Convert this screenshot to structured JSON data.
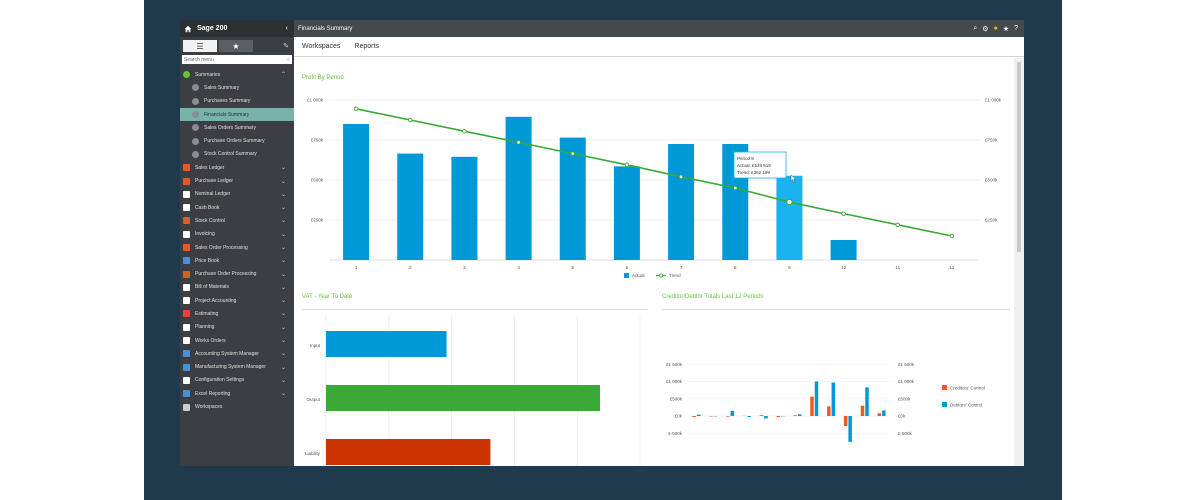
{
  "app": {
    "brand": "Sage 200",
    "page_title": "Financials Summary",
    "subnav": [
      "Workspaces",
      "Reports"
    ]
  },
  "sidebar": {
    "search_placeholder": "Search menu",
    "items": [
      {
        "label": "Summaries",
        "color": "#6bbf3e",
        "expanded": true
      },
      {
        "label": "Sales Summary",
        "sub": true
      },
      {
        "label": "Purchases Summary",
        "sub": true
      },
      {
        "label": "Financials Summary",
        "sub": true,
        "active": true
      },
      {
        "label": "Sales Orders Summary",
        "sub": true
      },
      {
        "label": "Purchase Orders Summary",
        "sub": true
      },
      {
        "label": "Stock Control Summary",
        "sub": true
      },
      {
        "label": "Sales Ledger",
        "color": "#e05a2b"
      },
      {
        "label": "Purchase Ledger",
        "color": "#e05a2b"
      },
      {
        "label": "Nominal Ledger",
        "color": "#ffffff"
      },
      {
        "label": "Cash Book",
        "color": "#ffffff"
      },
      {
        "label": "Stock Control",
        "color": "#e05a2b"
      },
      {
        "label": "Invoicing",
        "color": "#ffffff"
      },
      {
        "label": "Sales Order Processing",
        "color": "#e05a2b"
      },
      {
        "label": "Price Book",
        "color": "#4a90d9"
      },
      {
        "label": "Purchase Order Processing",
        "color": "#e05a2b"
      },
      {
        "label": "Bill of Materials",
        "color": "#ffffff"
      },
      {
        "label": "Project Accounting",
        "color": "#ffffff"
      },
      {
        "label": "Estimating",
        "color": "#e0443a"
      },
      {
        "label": "Planning",
        "color": "#ffffff"
      },
      {
        "label": "Works Orders",
        "color": "#ffffff"
      },
      {
        "label": "Accounting System Manager",
        "color": "#4a90d9"
      },
      {
        "label": "Manufacturing System Manager",
        "color": "#4a90d9"
      },
      {
        "label": "Configuration Settings",
        "color": "#ffffff"
      },
      {
        "label": "Excel Reporting",
        "color": "#4a90d9"
      },
      {
        "label": "Workspaces",
        "color": "#cccccc",
        "nochev": true
      }
    ]
  },
  "profit_chart": {
    "title": "Profit By Period",
    "categories": [
      "1",
      "2",
      "3",
      "4",
      "5",
      "6",
      "7",
      "8",
      "9",
      "10",
      "11",
      "12"
    ],
    "actual": [
      850,
      665,
      645,
      895,
      765,
      585,
      725,
      725,
      526.519,
      125,
      null,
      null
    ],
    "trend": [
      945,
      875,
      805,
      735,
      665,
      595,
      520,
      450,
      362.199,
      290,
      220,
      150
    ],
    "yticks": [
      "£250k",
      "£500k",
      "£750k",
      "£1 000k"
    ],
    "legend": [
      "Actual",
      "Trend"
    ],
    "tooltip": {
      "line1": "Period 9",
      "line2": "Actual: £526 519",
      "line3": "Trend: £362 199"
    },
    "colors": {
      "actual": "#0099d8",
      "trend": "#3aa935"
    }
  },
  "vat_chart": {
    "title": "VAT - Year To Date",
    "categories": [
      "Input",
      "Output",
      "Liability"
    ],
    "values": [
      0.44,
      1.0,
      0.6
    ],
    "colors": [
      "#0099d8",
      "#3aa935",
      "#cc3300"
    ]
  },
  "credit_chart": {
    "title": "Creditor/Debtor Totals Last 12 Periods",
    "yticks": [
      "£1 500k",
      "£1 000k",
      "£500k",
      "£0k",
      "£-500k"
    ],
    "legend": [
      "Creditors' Control",
      "Debtors' Control"
    ],
    "creditors": [
      0,
      -15,
      -20,
      5,
      25,
      -30,
      20,
      560,
      280,
      -290,
      300,
      80
    ],
    "debtors": [
      40,
      -10,
      150,
      -30,
      -70,
      -10,
      50,
      1000,
      970,
      -750,
      830,
      160
    ],
    "colors": {
      "creditors": "#f05a22",
      "debtors": "#0099d8"
    }
  }
}
